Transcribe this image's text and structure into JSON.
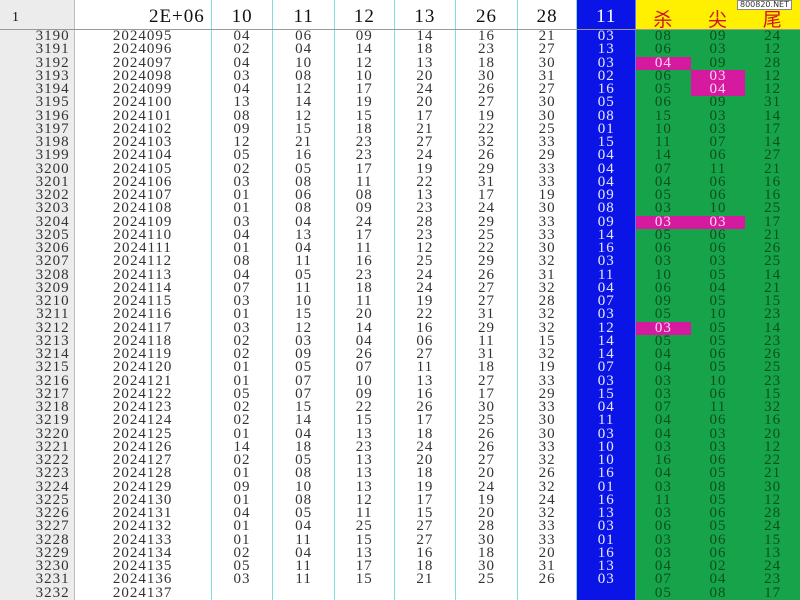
{
  "watermark": "800820.NET",
  "header": {
    "row_label": "1",
    "period": "2E+06",
    "cols": [
      "10",
      "11",
      "12",
      "13",
      "26",
      "28"
    ],
    "blue": "11",
    "green": [
      "杀",
      "尖",
      "尾"
    ]
  },
  "colors": {
    "blue": "#0a14e6",
    "green": "#16a34a",
    "highlight": "#d61aa0",
    "header_yellow": "#ffef00"
  },
  "rows": [
    {
      "n": "3190",
      "p": "2024095",
      "v": [
        "04",
        "06",
        "09",
        "14",
        "16",
        "21"
      ],
      "b": "03",
      "g": [
        "08",
        "09",
        "24"
      ],
      "hl": []
    },
    {
      "n": "3191",
      "p": "2024096",
      "v": [
        "02",
        "04",
        "14",
        "18",
        "23",
        "27"
      ],
      "b": "13",
      "g": [
        "06",
        "03",
        "12"
      ],
      "hl": []
    },
    {
      "n": "3192",
      "p": "2024097",
      "v": [
        "04",
        "10",
        "12",
        "13",
        "18",
        "30"
      ],
      "b": "03",
      "g": [
        "04",
        "09",
        "28"
      ],
      "hl": [
        0
      ]
    },
    {
      "n": "3193",
      "p": "2024098",
      "v": [
        "03",
        "08",
        "10",
        "20",
        "30",
        "31"
      ],
      "b": "02",
      "g": [
        "06",
        "03",
        "12"
      ],
      "hl": [
        1
      ]
    },
    {
      "n": "3194",
      "p": "2024099",
      "v": [
        "04",
        "12",
        "17",
        "24",
        "26",
        "27"
      ],
      "b": "16",
      "g": [
        "05",
        "04",
        "12"
      ],
      "hl": [
        1
      ]
    },
    {
      "n": "3195",
      "p": "2024100",
      "v": [
        "13",
        "14",
        "19",
        "20",
        "27",
        "30"
      ],
      "b": "05",
      "g": [
        "06",
        "09",
        "31"
      ],
      "hl": []
    },
    {
      "n": "3196",
      "p": "2024101",
      "v": [
        "08",
        "12",
        "15",
        "17",
        "19",
        "30"
      ],
      "b": "08",
      "g": [
        "15",
        "03",
        "14"
      ],
      "hl": []
    },
    {
      "n": "3197",
      "p": "2024102",
      "v": [
        "09",
        "15",
        "18",
        "21",
        "22",
        "25"
      ],
      "b": "01",
      "g": [
        "10",
        "03",
        "17"
      ],
      "hl": []
    },
    {
      "n": "3198",
      "p": "2024103",
      "v": [
        "12",
        "21",
        "23",
        "27",
        "32",
        "33"
      ],
      "b": "15",
      "g": [
        "11",
        "07",
        "14"
      ],
      "hl": []
    },
    {
      "n": "3199",
      "p": "2024104",
      "v": [
        "05",
        "16",
        "23",
        "24",
        "26",
        "29"
      ],
      "b": "04",
      "g": [
        "14",
        "06",
        "27"
      ],
      "hl": []
    },
    {
      "n": "3200",
      "p": "2024105",
      "v": [
        "02",
        "05",
        "17",
        "19",
        "29",
        "33"
      ],
      "b": "04",
      "g": [
        "07",
        "11",
        "21"
      ],
      "hl": []
    },
    {
      "n": "3201",
      "p": "2024106",
      "v": [
        "03",
        "08",
        "11",
        "22",
        "31",
        "33"
      ],
      "b": "04",
      "g": [
        "04",
        "06",
        "16"
      ],
      "hl": []
    },
    {
      "n": "3202",
      "p": "2024107",
      "v": [
        "01",
        "06",
        "08",
        "13",
        "17",
        "19"
      ],
      "b": "09",
      "g": [
        "05",
        "06",
        "16"
      ],
      "hl": []
    },
    {
      "n": "3203",
      "p": "2024108",
      "v": [
        "01",
        "08",
        "09",
        "23",
        "24",
        "30"
      ],
      "b": "08",
      "g": [
        "03",
        "10",
        "25"
      ],
      "hl": []
    },
    {
      "n": "3204",
      "p": "2024109",
      "v": [
        "03",
        "04",
        "24",
        "28",
        "29",
        "33"
      ],
      "b": "09",
      "g": [
        "03",
        "03",
        "17"
      ],
      "hl": [
        0,
        1
      ]
    },
    {
      "n": "3205",
      "p": "2024110",
      "v": [
        "04",
        "13",
        "17",
        "23",
        "25",
        "33"
      ],
      "b": "14",
      "g": [
        "05",
        "06",
        "21"
      ],
      "hl": []
    },
    {
      "n": "3206",
      "p": "2024111",
      "v": [
        "01",
        "04",
        "11",
        "12",
        "22",
        "30"
      ],
      "b": "16",
      "g": [
        "06",
        "06",
        "26"
      ],
      "hl": []
    },
    {
      "n": "3207",
      "p": "2024112",
      "v": [
        "08",
        "11",
        "16",
        "25",
        "29",
        "32"
      ],
      "b": "03",
      "g": [
        "03",
        "03",
        "25"
      ],
      "hl": []
    },
    {
      "n": "3208",
      "p": "2024113",
      "v": [
        "04",
        "05",
        "23",
        "24",
        "26",
        "31"
      ],
      "b": "11",
      "g": [
        "10",
        "05",
        "14"
      ],
      "hl": []
    },
    {
      "n": "3209",
      "p": "2024114",
      "v": [
        "07",
        "11",
        "18",
        "24",
        "27",
        "32"
      ],
      "b": "04",
      "g": [
        "06",
        "04",
        "21"
      ],
      "hl": []
    },
    {
      "n": "3210",
      "p": "2024115",
      "v": [
        "03",
        "10",
        "11",
        "19",
        "27",
        "28"
      ],
      "b": "07",
      "g": [
        "09",
        "05",
        "15"
      ],
      "hl": []
    },
    {
      "n": "3211",
      "p": "2024116",
      "v": [
        "01",
        "15",
        "20",
        "22",
        "31",
        "32"
      ],
      "b": "03",
      "g": [
        "05",
        "10",
        "23"
      ],
      "hl": []
    },
    {
      "n": "3212",
      "p": "2024117",
      "v": [
        "03",
        "12",
        "14",
        "16",
        "29",
        "32"
      ],
      "b": "12",
      "g": [
        "03",
        "05",
        "14"
      ],
      "hl": [
        0
      ]
    },
    {
      "n": "3213",
      "p": "2024118",
      "v": [
        "02",
        "03",
        "04",
        "06",
        "11",
        "15"
      ],
      "b": "14",
      "g": [
        "05",
        "05",
        "23"
      ],
      "hl": []
    },
    {
      "n": "3214",
      "p": "2024119",
      "v": [
        "02",
        "09",
        "26",
        "27",
        "31",
        "32"
      ],
      "b": "14",
      "g": [
        "04",
        "06",
        "26"
      ],
      "hl": []
    },
    {
      "n": "3215",
      "p": "2024120",
      "v": [
        "01",
        "05",
        "07",
        "11",
        "18",
        "19"
      ],
      "b": "07",
      "g": [
        "04",
        "05",
        "25"
      ],
      "hl": []
    },
    {
      "n": "3216",
      "p": "2024121",
      "v": [
        "01",
        "07",
        "10",
        "13",
        "27",
        "33"
      ],
      "b": "03",
      "g": [
        "03",
        "10",
        "23"
      ],
      "hl": []
    },
    {
      "n": "3217",
      "p": "2024122",
      "v": [
        "05",
        "07",
        "09",
        "16",
        "17",
        "29"
      ],
      "b": "15",
      "g": [
        "03",
        "06",
        "15"
      ],
      "hl": []
    },
    {
      "n": "3218",
      "p": "2024123",
      "v": [
        "02",
        "15",
        "22",
        "26",
        "30",
        "33"
      ],
      "b": "04",
      "g": [
        "07",
        "11",
        "32"
      ],
      "hl": []
    },
    {
      "n": "3219",
      "p": "2024124",
      "v": [
        "02",
        "14",
        "15",
        "17",
        "25",
        "30"
      ],
      "b": "11",
      "g": [
        "04",
        "06",
        "16"
      ],
      "hl": []
    },
    {
      "n": "3220",
      "p": "2024125",
      "v": [
        "01",
        "04",
        "13",
        "18",
        "26",
        "30"
      ],
      "b": "03",
      "g": [
        "04",
        "03",
        "20"
      ],
      "hl": []
    },
    {
      "n": "3221",
      "p": "2024126",
      "v": [
        "14",
        "18",
        "23",
        "24",
        "26",
        "33"
      ],
      "b": "10",
      "g": [
        "03",
        "03",
        "12"
      ],
      "hl": []
    },
    {
      "n": "3222",
      "p": "2024127",
      "v": [
        "02",
        "05",
        "13",
        "20",
        "27",
        "32"
      ],
      "b": "10",
      "g": [
        "16",
        "06",
        "22"
      ],
      "hl": []
    },
    {
      "n": "3223",
      "p": "2024128",
      "v": [
        "01",
        "08",
        "13",
        "18",
        "20",
        "26"
      ],
      "b": "16",
      "g": [
        "04",
        "05",
        "21"
      ],
      "hl": []
    },
    {
      "n": "3224",
      "p": "2024129",
      "v": [
        "09",
        "10",
        "13",
        "19",
        "24",
        "32"
      ],
      "b": "01",
      "g": [
        "03",
        "08",
        "30"
      ],
      "hl": []
    },
    {
      "n": "3225",
      "p": "2024130",
      "v": [
        "01",
        "08",
        "12",
        "17",
        "19",
        "24"
      ],
      "b": "16",
      "g": [
        "11",
        "05",
        "12"
      ],
      "hl": []
    },
    {
      "n": "3226",
      "p": "2024131",
      "v": [
        "04",
        "05",
        "11",
        "15",
        "20",
        "32"
      ],
      "b": "13",
      "g": [
        "03",
        "06",
        "28"
      ],
      "hl": []
    },
    {
      "n": "3227",
      "p": "2024132",
      "v": [
        "01",
        "04",
        "25",
        "27",
        "28",
        "33"
      ],
      "b": "03",
      "g": [
        "06",
        "05",
        "24"
      ],
      "hl": []
    },
    {
      "n": "3228",
      "p": "2024133",
      "v": [
        "01",
        "11",
        "15",
        "27",
        "30",
        "33"
      ],
      "b": "01",
      "g": [
        "03",
        "06",
        "15"
      ],
      "hl": []
    },
    {
      "n": "3229",
      "p": "2024134",
      "v": [
        "02",
        "04",
        "13",
        "16",
        "18",
        "20"
      ],
      "b": "16",
      "g": [
        "03",
        "06",
        "13"
      ],
      "hl": []
    },
    {
      "n": "3230",
      "p": "2024135",
      "v": [
        "05",
        "11",
        "17",
        "18",
        "30",
        "31"
      ],
      "b": "13",
      "g": [
        "04",
        "02",
        "24"
      ],
      "hl": []
    },
    {
      "n": "3231",
      "p": "2024136",
      "v": [
        "03",
        "11",
        "15",
        "21",
        "25",
        "26"
      ],
      "b": "03",
      "g": [
        "07",
        "04",
        "23"
      ],
      "hl": []
    },
    {
      "n": "3232",
      "p": "2024137",
      "v": [
        "",
        "",
        "",
        "",
        "",
        ""
      ],
      "b": "",
      "g": [
        "05",
        "08",
        "17"
      ],
      "hl": []
    }
  ]
}
